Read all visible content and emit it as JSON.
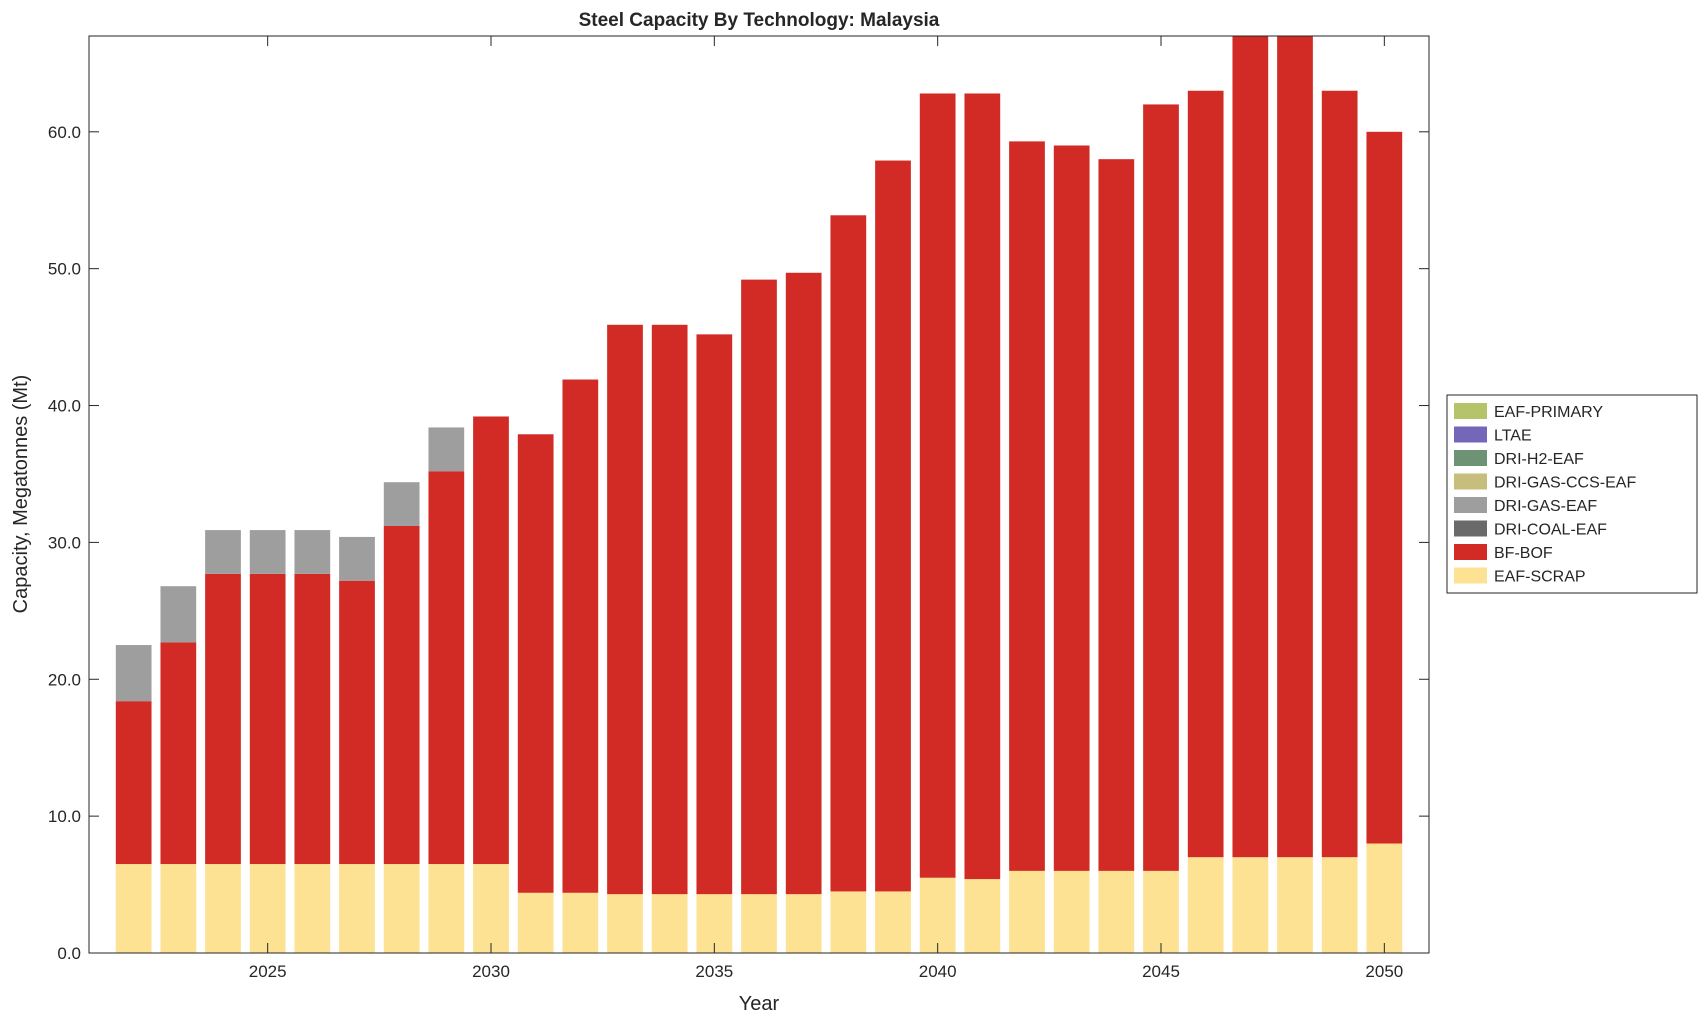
{
  "chart_data": {
    "type": "bar",
    "stacked": true,
    "title": "Steel Capacity By Technology: Malaysia",
    "xlabel": "Year",
    "ylabel": "Capacity, Megatonnes (Mt)",
    "xlim": [
      2021,
      2051
    ],
    "ylim": [
      0,
      67
    ],
    "xticks": [
      "2025",
      "2030",
      "2035",
      "2040",
      "2045",
      "2050"
    ],
    "yticks": [
      "0.0",
      "10.0",
      "20.0",
      "30.0",
      "40.0",
      "50.0",
      "60.0"
    ],
    "legend_placement": "right-outside",
    "categories": [
      2022,
      2023,
      2024,
      2025,
      2026,
      2027,
      2028,
      2029,
      2030,
      2031,
      2032,
      2033,
      2034,
      2035,
      2036,
      2037,
      2038,
      2039,
      2040,
      2041,
      2042,
      2043,
      2044,
      2045,
      2046,
      2047,
      2048,
      2049,
      2050
    ],
    "series": [
      {
        "name": "EAF-SCRAP",
        "color": "#fde293",
        "values": [
          6.5,
          6.5,
          6.5,
          6.5,
          6.5,
          6.5,
          6.5,
          6.5,
          6.5,
          4.4,
          4.4,
          4.3,
          4.3,
          4.3,
          4.3,
          4.3,
          4.5,
          4.5,
          5.5,
          5.4,
          6.0,
          6.0,
          6.0,
          6.0,
          7.0,
          7.0,
          7.0,
          7.0,
          8.0
        ]
      },
      {
        "name": "BF-BOF",
        "color": "#d22a25",
        "values": [
          11.9,
          16.2,
          21.2,
          21.2,
          21.2,
          20.7,
          24.7,
          28.7,
          32.7,
          33.5,
          37.5,
          41.6,
          41.6,
          40.9,
          44.9,
          45.4,
          49.4,
          53.4,
          57.3,
          57.4,
          53.3,
          53.0,
          52.0,
          56.0,
          56.0,
          61.0,
          61.0,
          56.0,
          52.0
        ]
      },
      {
        "name": "DRI-COAL-EAF",
        "color": "#6a6a6a",
        "values": [
          0,
          0,
          0,
          0,
          0,
          0,
          0,
          0,
          0,
          0,
          0,
          0,
          0,
          0,
          0,
          0,
          0,
          0,
          0,
          0,
          0,
          0,
          0,
          0,
          0,
          0,
          0,
          0,
          0
        ]
      },
      {
        "name": "DRI-GAS-EAF",
        "color": "#9e9e9e",
        "values": [
          4.1,
          4.1,
          3.2,
          3.2,
          3.2,
          3.2,
          3.2,
          3.2,
          0,
          0,
          0,
          0,
          0,
          0,
          0,
          0,
          0,
          0,
          0,
          0,
          0,
          0,
          0,
          0,
          0,
          0,
          0,
          0,
          0
        ]
      },
      {
        "name": "DRI-GAS-CCS-EAF",
        "color": "#c7bd7c",
        "values": [
          0,
          0,
          0,
          0,
          0,
          0,
          0,
          0,
          0,
          0,
          0,
          0,
          0,
          0,
          0,
          0,
          0,
          0,
          0,
          0,
          0,
          0,
          0,
          0,
          0,
          0,
          0,
          0,
          0
        ]
      },
      {
        "name": "DRI-H2-EAF",
        "color": "#6e9274",
        "values": [
          0,
          0,
          0,
          0,
          0,
          0,
          0,
          0,
          0,
          0,
          0,
          0,
          0,
          0,
          0,
          0,
          0,
          0,
          0,
          0,
          0,
          0,
          0,
          0,
          0,
          0,
          0,
          0,
          0
        ]
      },
      {
        "name": "LTAE",
        "color": "#7466b8",
        "values": [
          0,
          0,
          0,
          0,
          0,
          0,
          0,
          0,
          0,
          0,
          0,
          0,
          0,
          0,
          0,
          0,
          0,
          0,
          0,
          0,
          0,
          0,
          0,
          0,
          0,
          0,
          0,
          0,
          0
        ]
      },
      {
        "name": "EAF-PRIMARY",
        "color": "#b5c46a",
        "values": [
          0,
          0,
          0,
          0,
          0,
          0,
          0,
          0,
          0,
          0,
          0,
          0,
          0,
          0,
          0,
          0,
          0,
          0,
          0,
          0,
          0,
          0,
          0,
          0,
          0,
          0,
          0,
          0,
          0
        ]
      }
    ],
    "legend_order": [
      "EAF-PRIMARY",
      "LTAE",
      "DRI-H2-EAF",
      "DRI-GAS-CCS-EAF",
      "DRI-GAS-EAF",
      "DRI-COAL-EAF",
      "BF-BOF",
      "EAF-SCRAP"
    ]
  }
}
